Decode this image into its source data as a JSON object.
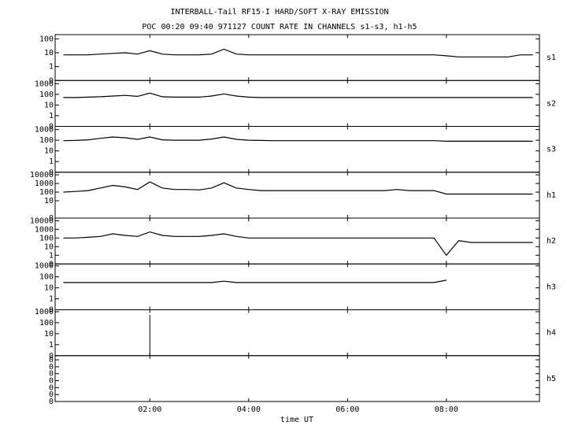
{
  "title": "INTERBALL-Tail RF15-I HARD/SOFT X-RAY EMISSION",
  "subtitle": "POC 00:20 09:40 971127  COUNT RATE IN CHANNELS s1-s3, h1-h5",
  "time_axis": {
    "label": "time UT",
    "xlim": [
      5,
      593
    ],
    "xticks": [
      {
        "value": 120,
        "label": "02:00"
      },
      {
        "value": 240,
        "label": "04:00"
      },
      {
        "value": 360,
        "label": "06:00"
      },
      {
        "value": 480,
        "label": "08:00"
      }
    ]
  },
  "chart_data": [
    {
      "type": "line",
      "label": "s1",
      "log_scale": true,
      "color": "#000000",
      "ylim": [
        0.1,
        200
      ],
      "yticks": [
        {
          "value": 0.1,
          "label": "0"
        },
        1,
        10,
        100
      ],
      "x": [
        15,
        30,
        45,
        60,
        75,
        90,
        105,
        120,
        135,
        150,
        165,
        180,
        195,
        210,
        225,
        240,
        255,
        270,
        285,
        300,
        315,
        330,
        345,
        360,
        375,
        390,
        405,
        420,
        435,
        450,
        465,
        480,
        495,
        510,
        525,
        540,
        555,
        570,
        585
      ],
      "values": [
        7,
        7,
        7,
        8,
        9,
        10,
        8,
        14,
        8,
        7,
        7,
        7,
        8,
        18,
        8,
        7,
        7,
        7,
        7,
        7,
        7,
        7,
        7,
        7,
        7,
        7,
        7,
        7,
        7,
        7,
        7,
        6,
        5,
        5,
        5,
        5,
        5,
        7,
        7
      ]
    },
    {
      "type": "line",
      "label": "s2",
      "log_scale": true,
      "color": "#000000",
      "ylim": [
        0.1,
        2000
      ],
      "yticks": [
        {
          "value": 0.1,
          "label": "0"
        },
        1,
        10,
        100,
        1000
      ],
      "x": [
        15,
        30,
        45,
        60,
        75,
        90,
        105,
        120,
        135,
        150,
        165,
        180,
        195,
        210,
        225,
        240,
        255,
        270,
        285,
        300,
        315,
        330,
        345,
        360,
        375,
        390,
        405,
        420,
        435,
        450,
        465,
        480,
        495,
        510,
        525,
        540,
        555,
        570,
        585
      ],
      "values": [
        50,
        50,
        55,
        60,
        70,
        80,
        65,
        130,
        60,
        55,
        55,
        55,
        70,
        110,
        70,
        55,
        50,
        50,
        50,
        50,
        50,
        50,
        50,
        50,
        50,
        50,
        50,
        50,
        50,
        50,
        50,
        50,
        50,
        50,
        50,
        50,
        50,
        50,
        50
      ]
    },
    {
      "type": "line",
      "label": "s3",
      "log_scale": true,
      "color": "#000000",
      "ylim": [
        0.1,
        2000
      ],
      "yticks": [
        {
          "value": 0.1,
          "label": "0"
        },
        1,
        10,
        100,
        1000
      ],
      "x": [
        15,
        30,
        45,
        60,
        75,
        90,
        105,
        120,
        135,
        150,
        165,
        180,
        195,
        210,
        225,
        240,
        255,
        270,
        285,
        300,
        315,
        330,
        345,
        360,
        375,
        390,
        405,
        420,
        435,
        450,
        465,
        480,
        495,
        510,
        525,
        540,
        555,
        570,
        585
      ],
      "values": [
        90,
        95,
        110,
        150,
        200,
        170,
        120,
        200,
        110,
        100,
        100,
        100,
        130,
        200,
        120,
        100,
        95,
        90,
        90,
        90,
        90,
        90,
        90,
        90,
        90,
        90,
        90,
        90,
        90,
        90,
        90,
        80,
        80,
        80,
        80,
        80,
        80,
        80,
        80
      ]
    },
    {
      "type": "line",
      "label": "h1",
      "log_scale": true,
      "color": "#000000",
      "ylim": [
        0.1,
        20000
      ],
      "yticks": [
        {
          "value": 0.1,
          "label": "0"
        },
        10,
        100,
        1000,
        10000
      ],
      "x": [
        15,
        30,
        45,
        60,
        75,
        90,
        105,
        120,
        135,
        150,
        165,
        180,
        195,
        210,
        225,
        240,
        255,
        270,
        285,
        300,
        315,
        330,
        345,
        360,
        375,
        390,
        405,
        420,
        435,
        450,
        465,
        480,
        495,
        510,
        525,
        540,
        555,
        570,
        585
      ],
      "values": [
        100,
        120,
        150,
        300,
        600,
        400,
        200,
        1500,
        300,
        200,
        200,
        180,
        300,
        1200,
        300,
        200,
        150,
        150,
        150,
        150,
        150,
        150,
        150,
        150,
        150,
        150,
        150,
        200,
        150,
        150,
        150,
        60,
        60,
        60,
        60,
        60,
        60,
        60,
        60
      ]
    },
    {
      "type": "line",
      "label": "h2",
      "log_scale": true,
      "color": "#000000",
      "ylim": [
        0.1,
        20000
      ],
      "yticks": [
        {
          "value": 0.1,
          "label": "0"
        },
        1,
        10,
        100,
        1000,
        10000
      ],
      "x": [
        15,
        30,
        45,
        60,
        75,
        90,
        105,
        120,
        135,
        150,
        165,
        180,
        195,
        210,
        225,
        240,
        255,
        270,
        285,
        300,
        315,
        330,
        345,
        360,
        375,
        390,
        405,
        420,
        435,
        450,
        465,
        480,
        495,
        510,
        525,
        540,
        555,
        570,
        585
      ],
      "values": [
        100,
        100,
        120,
        150,
        300,
        200,
        150,
        500,
        200,
        150,
        150,
        150,
        200,
        300,
        150,
        100,
        100,
        100,
        100,
        100,
        100,
        100,
        100,
        100,
        100,
        100,
        100,
        100,
        100,
        100,
        100,
        1,
        50,
        30,
        30,
        30,
        30,
        30,
        30
      ]
    },
    {
      "type": "line",
      "label": "h3",
      "log_scale": true,
      "color": "#000000",
      "ylim": [
        0.1,
        1500
      ],
      "yticks": [
        {
          "value": 0.1,
          "label": "0"
        },
        1,
        10,
        100,
        1000
      ],
      "x": [
        15,
        30,
        45,
        60,
        75,
        90,
        105,
        120,
        135,
        150,
        165,
        180,
        195,
        210,
        225,
        240,
        255,
        270,
        285,
        300,
        315,
        330,
        345,
        360,
        375,
        390,
        405,
        420,
        435,
        450,
        465,
        480,
        495,
        510,
        525,
        540,
        555,
        570,
        585
      ],
      "values": [
        30,
        30,
        30,
        30,
        30,
        30,
        30,
        30,
        30,
        30,
        30,
        30,
        30,
        40,
        30,
        30,
        30,
        30,
        30,
        30,
        30,
        30,
        30,
        30,
        30,
        30,
        30,
        30,
        30,
        30,
        30,
        50,
        null,
        null,
        null,
        null,
        null,
        null,
        null
      ]
    },
    {
      "type": "stem",
      "label": "h4",
      "log_scale": true,
      "color": "#000000",
      "ylim": [
        0.1,
        1500
      ],
      "yticks": [
        {
          "value": 0.1,
          "label": "0"
        },
        1,
        10,
        100,
        1000
      ],
      "x": [
        120
      ],
      "values": [
        500
      ]
    },
    {
      "type": "empty",
      "label": "h5",
      "log_scale": false,
      "ylim": [
        0,
        0.33
      ],
      "yticks": [
        {
          "value": 0,
          "label": "0"
        },
        {
          "value": 0.05,
          "label": "0"
        },
        {
          "value": 0.1,
          "label": "0"
        },
        {
          "value": 0.15,
          "label": "0"
        },
        {
          "value": 0.2,
          "label": "0"
        },
        {
          "value": 0.25,
          "label": "0"
        },
        {
          "value": 0.3,
          "label": "0"
        }
      ]
    }
  ]
}
